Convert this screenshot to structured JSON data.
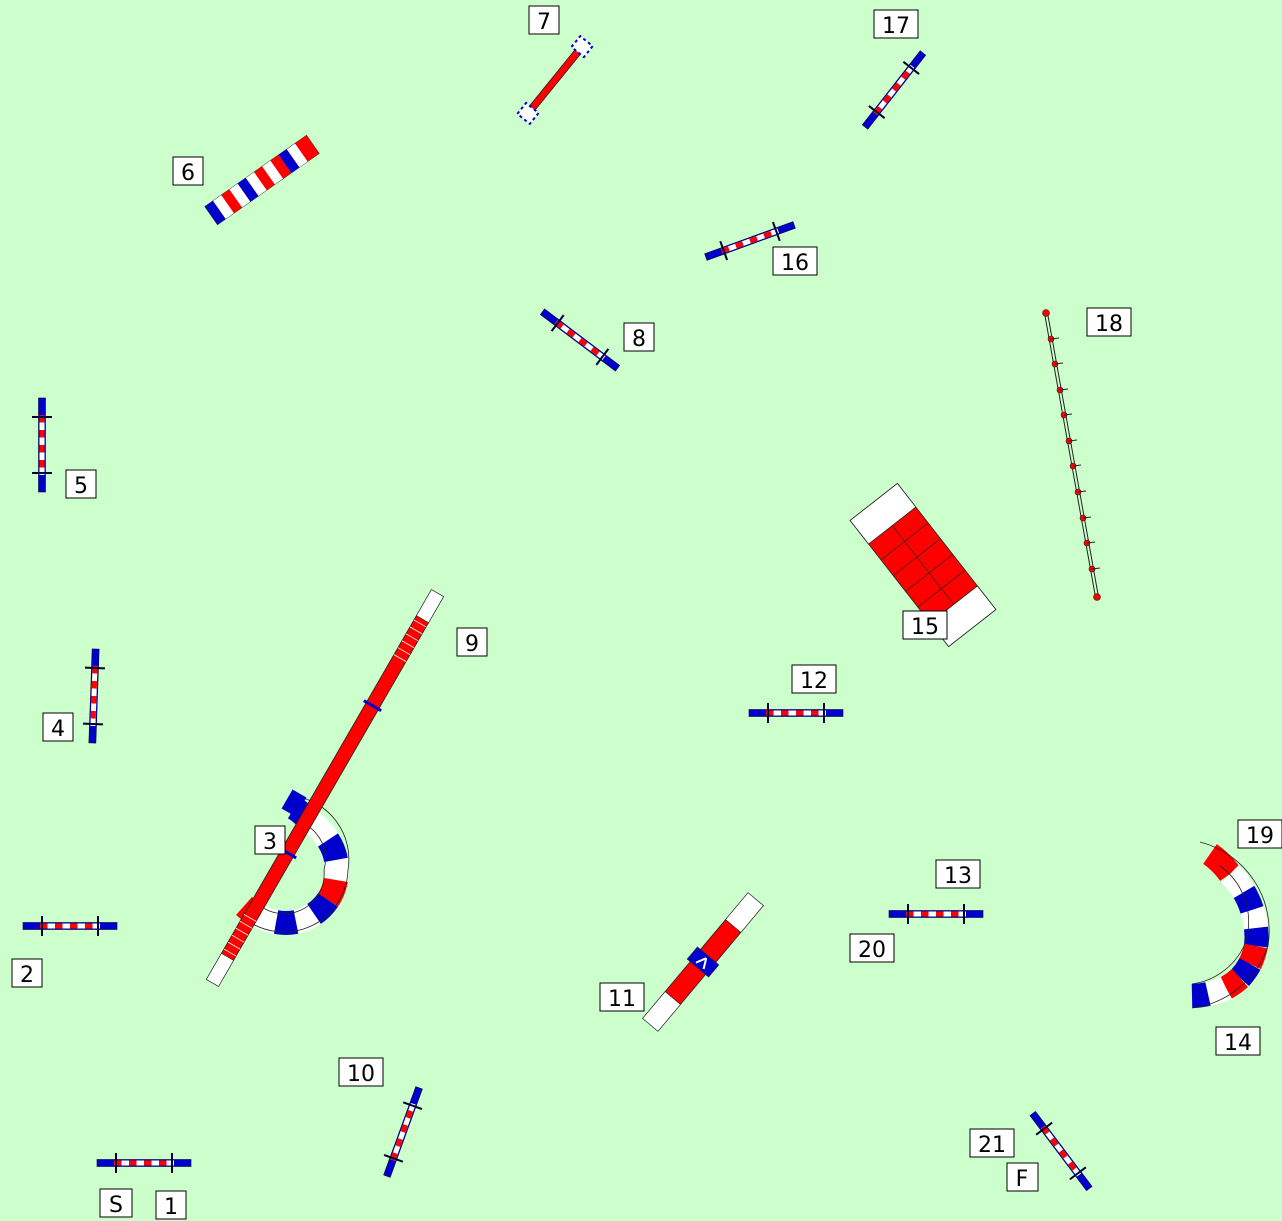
{
  "colors": {
    "background": "#ccffcc",
    "red": "#ff0000",
    "blue": "#0000cc",
    "white": "#ffffff",
    "darkline": "#222222"
  },
  "labels": {
    "start": "S",
    "finish": "F",
    "n1": "1",
    "n2": "2",
    "n3": "3",
    "n4": "4",
    "n5": "5",
    "n6": "6",
    "n7": "7",
    "n8": "8",
    "n9": "9",
    "n10": "10",
    "n11": "11",
    "n12": "12",
    "n13": "13",
    "n14": "14",
    "n15": "15",
    "n16": "16",
    "n17": "17",
    "n18": "18",
    "n19": "19",
    "n20": "20",
    "n21": "21"
  },
  "obstacles": {
    "jump_1": {
      "icon": "jump-bar-icon"
    },
    "jump_2": {
      "icon": "jump-bar-icon"
    },
    "tire_3": {
      "icon": "tunnel-curved-icon"
    },
    "jump_4": {
      "icon": "jump-bar-icon"
    },
    "jump_5": {
      "icon": "jump-bar-icon"
    },
    "tunnel_6": {
      "icon": "tunnel-straight-icon"
    },
    "jump_7": {
      "icon": "tire-jump-icon"
    },
    "jump_8": {
      "icon": "jump-bar-icon"
    },
    "dogwalk_9": {
      "icon": "dogwalk-icon"
    },
    "jump_10": {
      "icon": "jump-bar-icon"
    },
    "seesaw_11": {
      "icon": "seesaw-icon"
    },
    "jump_12": {
      "icon": "jump-bar-icon"
    },
    "jump_13": {
      "icon": "jump-bar-icon"
    },
    "tunnel_14": {
      "icon": "tunnel-curved-icon"
    },
    "aframe_15": {
      "icon": "a-frame-icon"
    },
    "jump_16": {
      "icon": "jump-bar-icon"
    },
    "jump_17": {
      "icon": "jump-bar-icon"
    },
    "weave_18": {
      "icon": "weave-poles-icon"
    },
    "jump_21": {
      "icon": "jump-bar-icon"
    }
  }
}
